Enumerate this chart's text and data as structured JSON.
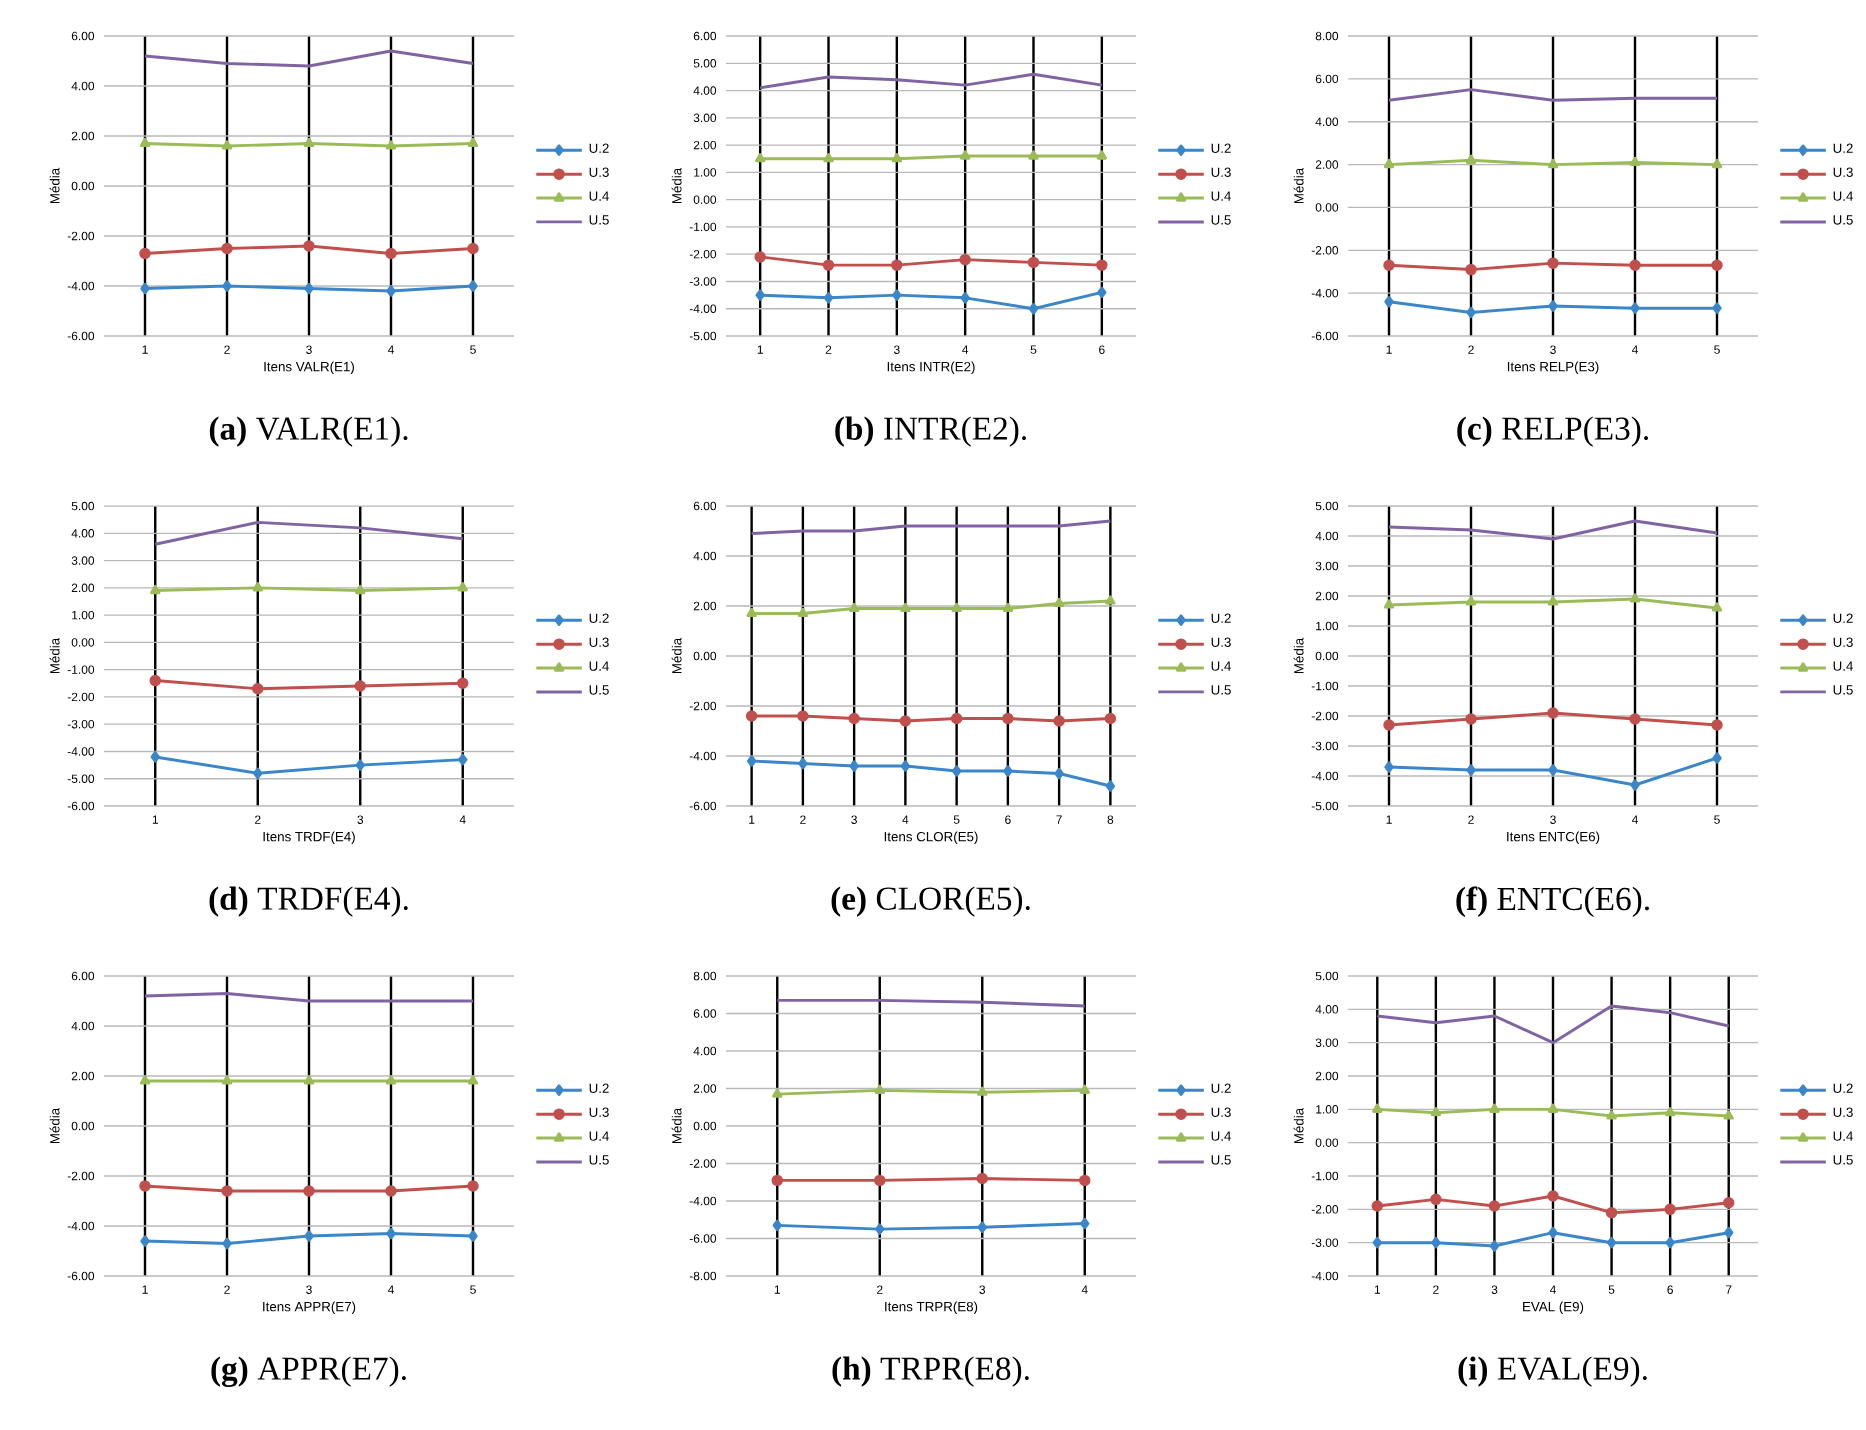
{
  "chart_data": [
    {
      "type": "line",
      "title": "**(a)** VALR(E1).",
      "xlabel": "Itens VALR(E1)",
      "ylabel": "Média",
      "categories": [
        "1",
        "2",
        "3",
        "4",
        "5"
      ],
      "ylim": [
        -6,
        6
      ],
      "yticks": [
        {
          "value": -6,
          "label": "-6.00"
        },
        {
          "value": -4,
          "label": "-4.00"
        },
        {
          "value": -2,
          "label": "-2.00"
        },
        {
          "value": 0,
          "label": "0.00"
        },
        {
          "value": 2,
          "label": "2.00"
        },
        {
          "value": 4,
          "label": "4.00"
        },
        {
          "value": 6,
          "label": "6.00"
        }
      ],
      "grid": true,
      "legend": "right",
      "series": [
        {
          "name": "U.2",
          "color": "#3a86c8",
          "marker": "diamond",
          "values": [
            -4.1,
            -4.0,
            -4.1,
            -4.2,
            -4.0
          ]
        },
        {
          "name": "U.3",
          "color": "#c0504d",
          "marker": "circle",
          "values": [
            -2.7,
            -2.5,
            -2.4,
            -2.7,
            -2.5
          ]
        },
        {
          "name": "U.4",
          "color": "#9bbb59",
          "marker": "triangle",
          "values": [
            1.7,
            1.6,
            1.7,
            1.6,
            1.7
          ]
        },
        {
          "name": "U.5",
          "color": "#8064a2",
          "marker": "none",
          "values": [
            5.2,
            4.9,
            4.8,
            5.4,
            4.9
          ]
        }
      ]
    },
    {
      "type": "line",
      "title": "**(b)** INTR(E2).",
      "xlabel": "Itens INTR(E2)",
      "ylabel": "Média",
      "categories": [
        "1",
        "2",
        "3",
        "4",
        "5",
        "6"
      ],
      "ylim": [
        -5,
        6
      ],
      "yticks": [
        {
          "value": -5,
          "label": "-5.00"
        },
        {
          "value": -4,
          "label": "-4.00"
        },
        {
          "value": -3,
          "label": "-3.00"
        },
        {
          "value": -2,
          "label": "-2.00"
        },
        {
          "value": -1,
          "label": "-1.00"
        },
        {
          "value": 0,
          "label": "0.00"
        },
        {
          "value": 1,
          "label": "1.00"
        },
        {
          "value": 2,
          "label": "2.00"
        },
        {
          "value": 3,
          "label": "3.00"
        },
        {
          "value": 4,
          "label": "4.00"
        },
        {
          "value": 5,
          "label": "5.00"
        },
        {
          "value": 6,
          "label": "6.00"
        }
      ],
      "grid": true,
      "legend": "right",
      "series": [
        {
          "name": "U.2",
          "color": "#3a86c8",
          "marker": "diamond",
          "values": [
            -3.5,
            -3.6,
            -3.5,
            -3.6,
            -4.0,
            -3.4
          ]
        },
        {
          "name": "U.3",
          "color": "#c0504d",
          "marker": "circle",
          "values": [
            -2.1,
            -2.4,
            -2.4,
            -2.2,
            -2.3,
            -2.4
          ]
        },
        {
          "name": "U.4",
          "color": "#9bbb59",
          "marker": "triangle",
          "values": [
            1.5,
            1.5,
            1.5,
            1.6,
            1.6,
            1.6
          ]
        },
        {
          "name": "U.5",
          "color": "#8064a2",
          "marker": "none",
          "values": [
            4.1,
            4.5,
            4.4,
            4.2,
            4.6,
            4.2
          ]
        }
      ]
    },
    {
      "type": "line",
      "title": "**(c)** RELP(E3).",
      "xlabel": "Itens RELP(E3)",
      "ylabel": "Média",
      "categories": [
        "1",
        "2",
        "3",
        "4",
        "5"
      ],
      "ylim": [
        -6,
        8
      ],
      "yticks": [
        {
          "value": -6,
          "label": "-6.00"
        },
        {
          "value": -4,
          "label": "-4.00"
        },
        {
          "value": -2,
          "label": "-2.00"
        },
        {
          "value": 0,
          "label": "0.00"
        },
        {
          "value": 2,
          "label": "2.00"
        },
        {
          "value": 4,
          "label": "4.00"
        },
        {
          "value": 6,
          "label": "6.00"
        },
        {
          "value": 8,
          "label": "8.00"
        }
      ],
      "grid": true,
      "legend": "right",
      "series": [
        {
          "name": "U.2",
          "color": "#3a86c8",
          "marker": "diamond",
          "values": [
            -4.4,
            -4.9,
            -4.6,
            -4.7,
            -4.7
          ]
        },
        {
          "name": "U.3",
          "color": "#c0504d",
          "marker": "circle",
          "values": [
            -2.7,
            -2.9,
            -2.6,
            -2.7,
            -2.7
          ]
        },
        {
          "name": "U.4",
          "color": "#9bbb59",
          "marker": "triangle",
          "values": [
            2.0,
            2.2,
            2.0,
            2.1,
            2.0
          ]
        },
        {
          "name": "U.5",
          "color": "#8064a2",
          "marker": "none",
          "values": [
            5.0,
            5.5,
            5.0,
            5.1,
            5.1
          ]
        }
      ]
    },
    {
      "type": "line",
      "title": "**(d)** TRDF(E4).",
      "xlabel": "Itens TRDF(E4)",
      "ylabel": "Média",
      "categories": [
        "1",
        "2",
        "3",
        "4"
      ],
      "ylim": [
        -6,
        5
      ],
      "yticks": [
        {
          "value": -6,
          "label": "-6.00"
        },
        {
          "value": -5,
          "label": "-5.00"
        },
        {
          "value": -4,
          "label": "-4.00"
        },
        {
          "value": -3,
          "label": "-3.00"
        },
        {
          "value": -2,
          "label": "-2.00"
        },
        {
          "value": -1,
          "label": "-1.00"
        },
        {
          "value": 0,
          "label": "0.00"
        },
        {
          "value": 1,
          "label": "1.00"
        },
        {
          "value": 2,
          "label": "2.00"
        },
        {
          "value": 3,
          "label": "3.00"
        },
        {
          "value": 4,
          "label": "4.00"
        },
        {
          "value": 5,
          "label": "5.00"
        }
      ],
      "grid": true,
      "legend": "right",
      "series": [
        {
          "name": "U.2",
          "color": "#3a86c8",
          "marker": "diamond",
          "values": [
            -4.2,
            -4.8,
            -4.5,
            -4.3
          ]
        },
        {
          "name": "U.3",
          "color": "#c0504d",
          "marker": "circle",
          "values": [
            -1.4,
            -1.7,
            -1.6,
            -1.5
          ]
        },
        {
          "name": "U.4",
          "color": "#9bbb59",
          "marker": "triangle",
          "values": [
            1.9,
            2.0,
            1.9,
            2.0
          ]
        },
        {
          "name": "U.5",
          "color": "#8064a2",
          "marker": "none",
          "values": [
            3.6,
            4.4,
            4.2,
            3.8
          ]
        }
      ]
    },
    {
      "type": "line",
      "title": "**(e)** CLOR(E5).",
      "xlabel": "Itens CLOR(E5)",
      "ylabel": "Média",
      "categories": [
        "1",
        "2",
        "3",
        "4",
        "5",
        "6",
        "7",
        "8"
      ],
      "ylim": [
        -6,
        6
      ],
      "yticks": [
        {
          "value": -6,
          "label": "-6.00"
        },
        {
          "value": -4,
          "label": "-4.00"
        },
        {
          "value": -2,
          "label": "-2.00"
        },
        {
          "value": 0,
          "label": "0.00"
        },
        {
          "value": 2,
          "label": "2.00"
        },
        {
          "value": 4,
          "label": "4.00"
        },
        {
          "value": 6,
          "label": "6.00"
        }
      ],
      "grid": true,
      "legend": "right",
      "series": [
        {
          "name": "U.2",
          "color": "#3a86c8",
          "marker": "diamond",
          "values": [
            -4.2,
            -4.3,
            -4.4,
            -4.4,
            -4.6,
            -4.6,
            -4.7,
            -5.2
          ]
        },
        {
          "name": "U.3",
          "color": "#c0504d",
          "marker": "circle",
          "values": [
            -2.4,
            -2.4,
            -2.5,
            -2.6,
            -2.5,
            -2.5,
            -2.6,
            -2.5
          ]
        },
        {
          "name": "U.4",
          "color": "#9bbb59",
          "marker": "triangle",
          "values": [
            1.7,
            1.7,
            1.9,
            1.9,
            1.9,
            1.9,
            2.1,
            2.2
          ]
        },
        {
          "name": "U.5",
          "color": "#8064a2",
          "marker": "none",
          "values": [
            4.9,
            5.0,
            5.0,
            5.2,
            5.2,
            5.2,
            5.2,
            5.4
          ]
        }
      ]
    },
    {
      "type": "line",
      "title": "**(f)** ENTC(E6).",
      "xlabel": "Itens ENTC(E6)",
      "ylabel": "Média",
      "categories": [
        "1",
        "2",
        "3",
        "4",
        "5"
      ],
      "ylim": [
        -5,
        5
      ],
      "yticks": [
        {
          "value": -5,
          "label": "-5.00"
        },
        {
          "value": -4,
          "label": "-4.00"
        },
        {
          "value": -3,
          "label": "-3.00"
        },
        {
          "value": -2,
          "label": "-2.00"
        },
        {
          "value": -1,
          "label": "-1.00"
        },
        {
          "value": 0,
          "label": "0.00"
        },
        {
          "value": 1,
          "label": "1.00"
        },
        {
          "value": 2,
          "label": "2.00"
        },
        {
          "value": 3,
          "label": "3.00"
        },
        {
          "value": 4,
          "label": "4.00"
        },
        {
          "value": 5,
          "label": "5.00"
        }
      ],
      "grid": true,
      "legend": "right",
      "series": [
        {
          "name": "U.2",
          "color": "#3a86c8",
          "marker": "diamond",
          "values": [
            -3.7,
            -3.8,
            -3.8,
            -4.3,
            -3.4
          ]
        },
        {
          "name": "U.3",
          "color": "#c0504d",
          "marker": "circle",
          "values": [
            -2.3,
            -2.1,
            -1.9,
            -2.1,
            -2.3
          ]
        },
        {
          "name": "U.4",
          "color": "#9bbb59",
          "marker": "triangle",
          "values": [
            1.7,
            1.8,
            1.8,
            1.9,
            1.6
          ]
        },
        {
          "name": "U.5",
          "color": "#8064a2",
          "marker": "none",
          "values": [
            4.3,
            4.2,
            3.9,
            4.5,
            4.1
          ]
        }
      ]
    },
    {
      "type": "line",
      "title": "**(g)** APPR(E7).",
      "xlabel": "Itens APPR(E7)",
      "ylabel": "Média",
      "categories": [
        "1",
        "2",
        "3",
        "4",
        "5"
      ],
      "ylim": [
        -6,
        6
      ],
      "yticks": [
        {
          "value": -6,
          "label": "-6.00"
        },
        {
          "value": -4,
          "label": "-4.00"
        },
        {
          "value": -2,
          "label": "-2.00"
        },
        {
          "value": 0,
          "label": "0.00"
        },
        {
          "value": 2,
          "label": "2.00"
        },
        {
          "value": 4,
          "label": "4.00"
        },
        {
          "value": 6,
          "label": "6.00"
        }
      ],
      "grid": true,
      "legend": "right",
      "series": [
        {
          "name": "U.2",
          "color": "#3a86c8",
          "marker": "diamond",
          "values": [
            -4.6,
            -4.7,
            -4.4,
            -4.3,
            -4.4
          ]
        },
        {
          "name": "U.3",
          "color": "#c0504d",
          "marker": "circle",
          "values": [
            -2.4,
            -2.6,
            -2.6,
            -2.6,
            -2.4
          ]
        },
        {
          "name": "U.4",
          "color": "#9bbb59",
          "marker": "triangle",
          "values": [
            1.8,
            1.8,
            1.8,
            1.8,
            1.8
          ]
        },
        {
          "name": "U.5",
          "color": "#8064a2",
          "marker": "none",
          "values": [
            5.2,
            5.3,
            5.0,
            5.0,
            5.0
          ]
        }
      ]
    },
    {
      "type": "line",
      "title": "**(h)** TRPR(E8).",
      "xlabel": "Itens TRPR(E8)",
      "ylabel": "Média",
      "categories": [
        "1",
        "2",
        "3",
        "4"
      ],
      "ylim": [
        -8,
        8
      ],
      "yticks": [
        {
          "value": -8,
          "label": "-8.00"
        },
        {
          "value": -6,
          "label": "-6.00"
        },
        {
          "value": -4,
          "label": "-4.00"
        },
        {
          "value": -2,
          "label": "-2.00"
        },
        {
          "value": 0,
          "label": "0.00"
        },
        {
          "value": 2,
          "label": "2.00"
        },
        {
          "value": 4,
          "label": "4.00"
        },
        {
          "value": 6,
          "label": "6.00"
        },
        {
          "value": 8,
          "label": "8.00"
        }
      ],
      "grid": true,
      "legend": "right",
      "series": [
        {
          "name": "U.2",
          "color": "#3a86c8",
          "marker": "diamond",
          "values": [
            -5.3,
            -5.5,
            -5.4,
            -5.2
          ]
        },
        {
          "name": "U.3",
          "color": "#c0504d",
          "marker": "circle",
          "values": [
            -2.9,
            -2.9,
            -2.8,
            -2.9
          ]
        },
        {
          "name": "U.4",
          "color": "#9bbb59",
          "marker": "triangle",
          "values": [
            1.7,
            1.9,
            1.8,
            1.9
          ]
        },
        {
          "name": "U.5",
          "color": "#8064a2",
          "marker": "none",
          "values": [
            6.7,
            6.7,
            6.6,
            6.4
          ]
        }
      ]
    },
    {
      "type": "line",
      "title": "**(i)** EVAL(E9).",
      "xlabel": "EVAL (E9)",
      "ylabel": "Média",
      "categories": [
        "1",
        "2",
        "3",
        "4",
        "5",
        "6",
        "7"
      ],
      "ylim": [
        -4,
        5
      ],
      "yticks": [
        {
          "value": -4,
          "label": "-4.00"
        },
        {
          "value": -3,
          "label": "-3.00"
        },
        {
          "value": -2,
          "label": "-2.00"
        },
        {
          "value": -1,
          "label": "-1.00"
        },
        {
          "value": 0,
          "label": "0.00"
        },
        {
          "value": 1,
          "label": "1.00"
        },
        {
          "value": 2,
          "label": "2.00"
        },
        {
          "value": 3,
          "label": "3.00"
        },
        {
          "value": 4,
          "label": "4.00"
        },
        {
          "value": 5,
          "label": "5.00"
        }
      ],
      "grid": true,
      "legend": "right",
      "series": [
        {
          "name": "U.2",
          "color": "#3a86c8",
          "marker": "diamond",
          "values": [
            -3.0,
            -3.0,
            -3.1,
            -2.7,
            -3.0,
            -3.0,
            -2.7
          ]
        },
        {
          "name": "U.3",
          "color": "#c0504d",
          "marker": "circle",
          "values": [
            -1.9,
            -1.7,
            -1.9,
            -1.6,
            -2.1,
            -2.0,
            -1.8
          ]
        },
        {
          "name": "U.4",
          "color": "#9bbb59",
          "marker": "triangle",
          "values": [
            1.0,
            0.9,
            1.0,
            1.0,
            0.8,
            0.9,
            0.8
          ]
        },
        {
          "name": "U.5",
          "color": "#8064a2",
          "marker": "none",
          "values": [
            3.8,
            3.6,
            3.8,
            3.0,
            4.1,
            3.9,
            3.5
          ]
        }
      ]
    }
  ]
}
